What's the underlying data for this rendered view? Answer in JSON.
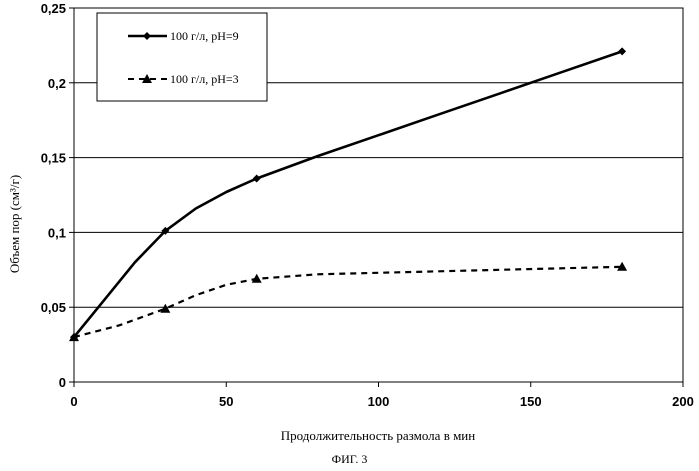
{
  "chart_data": {
    "type": "line",
    "title": "",
    "xlabel": "Продолжительность размола в мин",
    "ylabel": "Объем пор (см³/г)",
    "xlim": [
      0,
      200
    ],
    "ylim": [
      0,
      0.25
    ],
    "x_ticks": [
      "0",
      "50",
      "100",
      "150",
      "200"
    ],
    "y_ticks": [
      "0",
      "0,05",
      "0,1",
      "0,15",
      "0,2",
      "0,25"
    ],
    "grid": "horizontal",
    "legend_position": "top-left",
    "series": [
      {
        "name": "100 г/л, pH=9",
        "line_style": "solid",
        "marker": "diamond",
        "marker_points": [
          {
            "x": 0,
            "y": 0.03
          },
          {
            "x": 30,
            "y": 0.101
          },
          {
            "x": 60,
            "y": 0.136
          },
          {
            "x": 180,
            "y": 0.221
          }
        ],
        "curve": [
          {
            "x": 0,
            "y": 0.03
          },
          {
            "x": 10,
            "y": 0.055
          },
          {
            "x": 20,
            "y": 0.08
          },
          {
            "x": 30,
            "y": 0.101
          },
          {
            "x": 40,
            "y": 0.116
          },
          {
            "x": 50,
            "y": 0.127
          },
          {
            "x": 60,
            "y": 0.136
          },
          {
            "x": 80,
            "y": 0.151
          },
          {
            "x": 100,
            "y": 0.165
          },
          {
            "x": 120,
            "y": 0.179
          },
          {
            "x": 140,
            "y": 0.193
          },
          {
            "x": 160,
            "y": 0.207
          },
          {
            "x": 180,
            "y": 0.221
          }
        ]
      },
      {
        "name": "100 г/л, pH=3",
        "line_style": "dashed",
        "marker": "triangle",
        "marker_points": [
          {
            "x": 0,
            "y": 0.03
          },
          {
            "x": 30,
            "y": 0.049
          },
          {
            "x": 60,
            "y": 0.069
          },
          {
            "x": 180,
            "y": 0.077
          }
        ],
        "curve": [
          {
            "x": 0,
            "y": 0.03
          },
          {
            "x": 15,
            "y": 0.038
          },
          {
            "x": 30,
            "y": 0.049
          },
          {
            "x": 40,
            "y": 0.058
          },
          {
            "x": 50,
            "y": 0.065
          },
          {
            "x": 60,
            "y": 0.069
          },
          {
            "x": 80,
            "y": 0.072
          },
          {
            "x": 100,
            "y": 0.073
          },
          {
            "x": 140,
            "y": 0.075
          },
          {
            "x": 180,
            "y": 0.077
          }
        ]
      }
    ]
  },
  "caption": "ФИГ. 3"
}
